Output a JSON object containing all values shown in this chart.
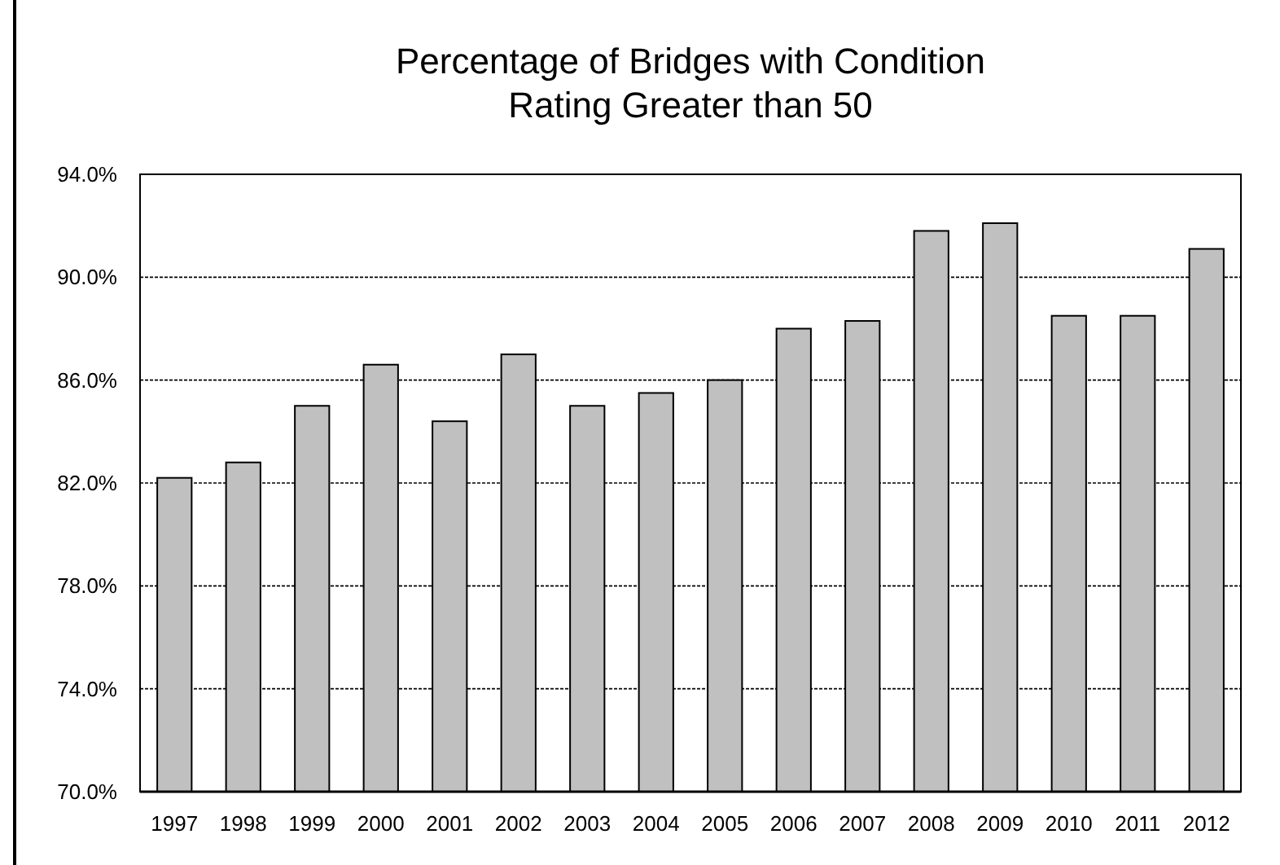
{
  "chart_data": {
    "type": "bar",
    "title": "Percentage of Bridges with Condition Rating Greater than 50",
    "categories": [
      "1997",
      "1998",
      "1999",
      "2000",
      "2001",
      "2002",
      "2003",
      "2004",
      "2005",
      "2006",
      "2007",
      "2008",
      "2009",
      "2010",
      "2011",
      "2012"
    ],
    "values": [
      82.2,
      82.8,
      85.0,
      86.6,
      84.4,
      87.0,
      85.0,
      85.5,
      86.0,
      88.0,
      88.3,
      91.8,
      92.1,
      88.5,
      88.5,
      91.1
    ],
    "color": "#c0c0c0",
    "ylim": [
      70,
      94
    ],
    "yticks": [
      {
        "value": 70,
        "label": "70.0%"
      },
      {
        "value": 74,
        "label": "74.0%"
      },
      {
        "value": 78,
        "label": "78.0%"
      },
      {
        "value": 82,
        "label": "82.0%"
      },
      {
        "value": 86,
        "label": "86.0%"
      },
      {
        "value": 90,
        "label": "90.0%"
      },
      {
        "value": 94,
        "label": "94.0%"
      }
    ],
    "grid": "y"
  }
}
